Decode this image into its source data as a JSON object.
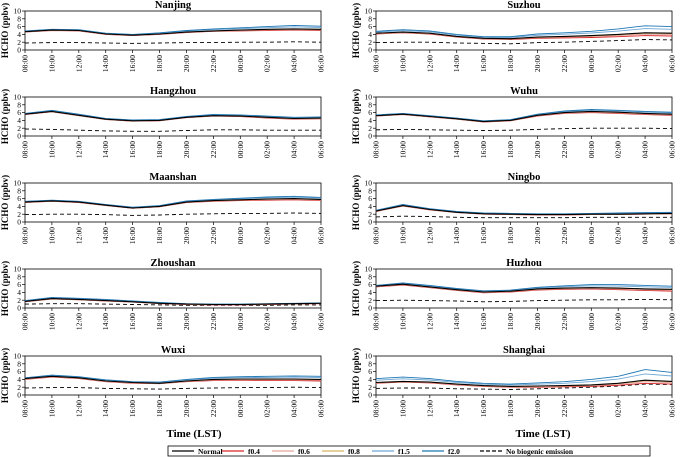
{
  "chart_data": {
    "type": "line",
    "ylabel": "HCHO (ppbv)",
    "xlabel": "Time (LST)",
    "yticks": [
      0,
      2,
      4,
      6,
      8,
      10
    ],
    "ylim": [
      0,
      10
    ],
    "grid": false,
    "legend_position": "bottom",
    "x": [
      "08:00",
      "10:00",
      "12:00",
      "14:00",
      "16:00",
      "18:00",
      "20:00",
      "22:00",
      "00:00",
      "02:00",
      "04:00",
      "06:00"
    ],
    "x_tick_labels": [
      "08:00",
      "10:00",
      "12:00",
      "14:00",
      "16:00",
      "18:00",
      "20:00",
      "22:00",
      "00:00",
      "02:00",
      "04:00",
      "06:00"
    ],
    "series_legend": [
      {
        "key": "normal",
        "label": "Normal",
        "color": "#000000",
        "dash": "none"
      },
      {
        "key": "f04",
        "label": "f0.4",
        "color": "#d62728",
        "dash": "none"
      },
      {
        "key": "f06",
        "label": "f0.6",
        "color": "#e8a39b",
        "dash": "none"
      },
      {
        "key": "f08",
        "label": "f0.8",
        "color": "#d8b365",
        "dash": "none"
      },
      {
        "key": "f15",
        "label": "f1.5",
        "color": "#6fa8d6",
        "dash": "none"
      },
      {
        "key": "f20",
        "label": "f2.0",
        "color": "#1f77b4",
        "dash": "none"
      },
      {
        "key": "nobio",
        "label": "No biogenic emission",
        "color": "#000000",
        "dash": "dashed"
      }
    ],
    "panels": [
      {
        "title": "Nanjing",
        "normal": [
          4.7,
          5.1,
          5.0,
          4.1,
          3.8,
          4.1,
          4.6,
          4.9,
          5.1,
          5.3,
          5.4,
          5.3
        ],
        "f04": [
          4.6,
          5.0,
          4.9,
          4.0,
          3.7,
          4.0,
          4.5,
          4.8,
          4.9,
          5.0,
          5.1,
          5.0
        ],
        "f20": [
          4.9,
          5.3,
          5.2,
          4.3,
          4.0,
          4.4,
          5.0,
          5.4,
          5.7,
          6.0,
          6.3,
          6.1
        ],
        "nobio": [
          1.8,
          1.9,
          1.9,
          1.8,
          1.7,
          1.8,
          1.9,
          1.9,
          2.0,
          2.0,
          2.1,
          2.0
        ]
      },
      {
        "title": "Suzhou",
        "normal": [
          4.3,
          4.6,
          4.3,
          3.5,
          3.0,
          2.9,
          3.3,
          3.5,
          3.7,
          4.0,
          4.4,
          4.3
        ],
        "f04": [
          4.1,
          4.4,
          4.1,
          3.3,
          2.8,
          2.7,
          3.0,
          3.1,
          3.2,
          3.4,
          3.7,
          3.6
        ],
        "f20": [
          4.8,
          5.2,
          4.9,
          4.0,
          3.4,
          3.4,
          4.1,
          4.4,
          4.8,
          5.4,
          6.2,
          6.0
        ],
        "nobio": [
          1.9,
          2.0,
          2.0,
          1.8,
          1.7,
          1.6,
          1.9,
          2.0,
          2.2,
          2.4,
          2.7,
          2.6
        ]
      },
      {
        "title": "Hangzhou",
        "normal": [
          5.6,
          6.3,
          5.3,
          4.3,
          3.9,
          4.0,
          4.8,
          5.2,
          5.1,
          4.8,
          4.5,
          4.6
        ],
        "f04": [
          5.5,
          6.2,
          5.2,
          4.2,
          3.8,
          3.9,
          4.7,
          5.1,
          5.0,
          4.6,
          4.3,
          4.4
        ],
        "f20": [
          5.8,
          6.6,
          5.6,
          4.5,
          4.1,
          4.2,
          5.0,
          5.5,
          5.4,
          5.1,
          4.8,
          4.9
        ],
        "nobio": [
          1.8,
          1.7,
          1.5,
          1.3,
          1.2,
          1.2,
          1.4,
          1.6,
          1.6,
          1.5,
          1.5,
          1.5
        ]
      },
      {
        "title": "Wuhu",
        "normal": [
          5.2,
          5.6,
          5.0,
          4.4,
          3.7,
          4.0,
          5.3,
          6.0,
          6.3,
          6.1,
          5.8,
          5.6
        ],
        "f04": [
          5.1,
          5.5,
          4.9,
          4.3,
          3.6,
          3.9,
          5.1,
          5.8,
          6.0,
          5.8,
          5.5,
          5.3
        ],
        "f20": [
          5.4,
          5.8,
          5.2,
          4.6,
          3.9,
          4.2,
          5.6,
          6.4,
          6.8,
          6.6,
          6.3,
          6.1
        ],
        "nobio": [
          1.6,
          1.7,
          1.6,
          1.5,
          1.4,
          1.5,
          1.7,
          1.9,
          2.0,
          2.0,
          2.0,
          1.9
        ]
      },
      {
        "title": "Maanshan",
        "normal": [
          5.1,
          5.4,
          5.1,
          4.3,
          3.6,
          4.0,
          5.1,
          5.5,
          5.7,
          5.9,
          6.0,
          5.8
        ],
        "f04": [
          5.0,
          5.3,
          5.0,
          4.2,
          3.5,
          3.9,
          5.0,
          5.3,
          5.5,
          5.6,
          5.7,
          5.5
        ],
        "f20": [
          5.3,
          5.6,
          5.3,
          4.5,
          3.8,
          4.2,
          5.4,
          5.8,
          6.1,
          6.4,
          6.6,
          6.3
        ],
        "nobio": [
          1.9,
          2.0,
          2.0,
          1.9,
          1.7,
          1.8,
          2.0,
          2.1,
          2.2,
          2.2,
          2.3,
          2.2
        ]
      },
      {
        "title": "Ningbo",
        "normal": [
          2.8,
          4.2,
          3.2,
          2.5,
          2.1,
          2.0,
          1.9,
          1.9,
          2.0,
          2.0,
          2.1,
          2.2
        ],
        "f04": [
          2.7,
          4.1,
          3.1,
          2.4,
          2.0,
          1.9,
          1.8,
          1.8,
          1.9,
          1.9,
          2.0,
          2.1
        ],
        "f20": [
          3.0,
          4.5,
          3.4,
          2.7,
          2.3,
          2.2,
          2.1,
          2.1,
          2.2,
          2.3,
          2.4,
          2.5
        ],
        "nobio": [
          1.3,
          1.5,
          1.4,
          1.2,
          1.1,
          1.1,
          1.1,
          1.1,
          1.2,
          1.2,
          1.2,
          1.2
        ]
      },
      {
        "title": "Zhoushan",
        "normal": [
          1.7,
          2.4,
          2.2,
          1.9,
          1.6,
          1.2,
          1.0,
          0.9,
          0.9,
          1.0,
          1.1,
          1.2
        ],
        "f04": [
          1.6,
          2.3,
          2.1,
          1.8,
          1.5,
          1.1,
          0.9,
          0.8,
          0.8,
          0.9,
          1.0,
          1.1
        ],
        "f20": [
          1.9,
          2.7,
          2.5,
          2.2,
          1.8,
          1.4,
          1.1,
          1.0,
          1.0,
          1.1,
          1.2,
          1.3
        ],
        "nobio": [
          1.0,
          1.1,
          1.1,
          1.0,
          0.9,
          0.8,
          0.7,
          0.7,
          0.7,
          0.7,
          0.8,
          0.8
        ]
      },
      {
        "title": "Huzhou",
        "normal": [
          5.6,
          6.1,
          5.4,
          4.7,
          4.1,
          4.3,
          4.9,
          5.1,
          5.2,
          5.1,
          4.9,
          4.8
        ],
        "f04": [
          5.4,
          5.9,
          5.2,
          4.5,
          3.9,
          4.1,
          4.6,
          4.8,
          4.9,
          4.7,
          4.5,
          4.3
        ],
        "f20": [
          5.8,
          6.4,
          5.8,
          5.0,
          4.4,
          4.6,
          5.3,
          5.7,
          6.0,
          6.0,
          5.8,
          5.6
        ],
        "nobio": [
          1.9,
          2.0,
          1.9,
          1.8,
          1.6,
          1.7,
          1.9,
          2.0,
          2.1,
          2.1,
          2.2,
          2.1
        ]
      },
      {
        "title": "Wuxi",
        "normal": [
          4.2,
          4.8,
          4.4,
          3.6,
          3.2,
          3.0,
          3.6,
          4.0,
          4.1,
          4.1,
          4.1,
          4.0
        ],
        "f04": [
          4.0,
          4.6,
          4.2,
          3.4,
          3.0,
          2.9,
          3.4,
          3.7,
          3.8,
          3.7,
          3.7,
          3.6
        ],
        "f20": [
          4.4,
          5.1,
          4.7,
          3.9,
          3.4,
          3.3,
          4.0,
          4.5,
          4.7,
          4.8,
          4.9,
          4.8
        ],
        "nobio": [
          1.8,
          1.9,
          1.9,
          1.7,
          1.6,
          1.5,
          1.7,
          1.8,
          1.9,
          1.9,
          2.0,
          1.9
        ]
      },
      {
        "title": "Shanghai",
        "normal": [
          3.2,
          3.5,
          3.3,
          2.8,
          2.4,
          2.2,
          2.3,
          2.4,
          2.6,
          3.0,
          3.8,
          3.5
        ],
        "f04": [
          3.0,
          3.3,
          3.1,
          2.6,
          2.2,
          2.0,
          2.0,
          2.1,
          2.2,
          2.5,
          3.0,
          2.8
        ],
        "f20": [
          4.2,
          4.6,
          4.2,
          3.5,
          3.0,
          2.8,
          3.1,
          3.4,
          4.0,
          4.8,
          6.5,
          5.8
        ],
        "nobio": [
          1.7,
          1.8,
          1.8,
          1.6,
          1.5,
          1.4,
          1.6,
          1.8,
          2.0,
          2.3,
          2.8,
          2.7
        ]
      }
    ]
  }
}
